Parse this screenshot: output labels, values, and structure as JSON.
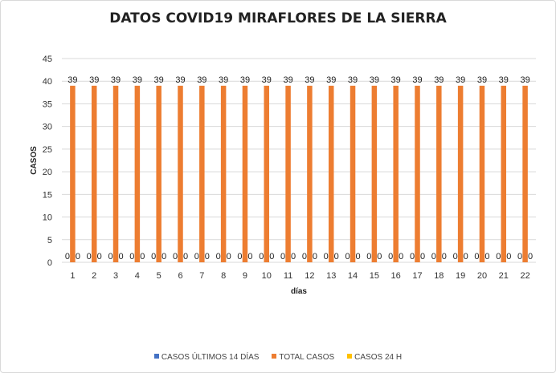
{
  "chart_data": {
    "type": "bar",
    "title": "DATOS COVID19 MIRAFLORES DE LA SIERRA",
    "xlabel": "días",
    "ylabel": "CASOS",
    "ylim": [
      0,
      45
    ],
    "yticks": [
      0,
      5,
      10,
      15,
      20,
      25,
      30,
      35,
      40,
      45
    ],
    "grid": true,
    "legend_position": "bottom",
    "categories": [
      "1",
      "2",
      "3",
      "4",
      "5",
      "6",
      "7",
      "8",
      "9",
      "10",
      "11",
      "12",
      "13",
      "14",
      "15",
      "16",
      "17",
      "18",
      "19",
      "20",
      "21",
      "22"
    ],
    "series": [
      {
        "name": "CASOS ÚLTIMOS 14 DÍAS",
        "color": "#4472c4",
        "values": [
          0,
          0,
          0,
          0,
          0,
          0,
          0,
          0,
          0,
          0,
          0,
          0,
          0,
          0,
          0,
          0,
          0,
          0,
          0,
          0,
          0,
          0
        ]
      },
      {
        "name": "TOTAL CASOS",
        "color": "#ed7d31",
        "values": [
          39,
          39,
          39,
          39,
          39,
          39,
          39,
          39,
          39,
          39,
          39,
          39,
          39,
          39,
          39,
          39,
          39,
          39,
          39,
          39,
          39,
          39
        ]
      },
      {
        "name": "CASOS 24 H",
        "color": "#ffc000",
        "values": [
          0,
          0,
          0,
          0,
          0,
          0,
          0,
          0,
          0,
          0,
          0,
          0,
          0,
          0,
          0,
          0,
          0,
          0,
          0,
          0,
          0,
          0
        ]
      }
    ]
  }
}
